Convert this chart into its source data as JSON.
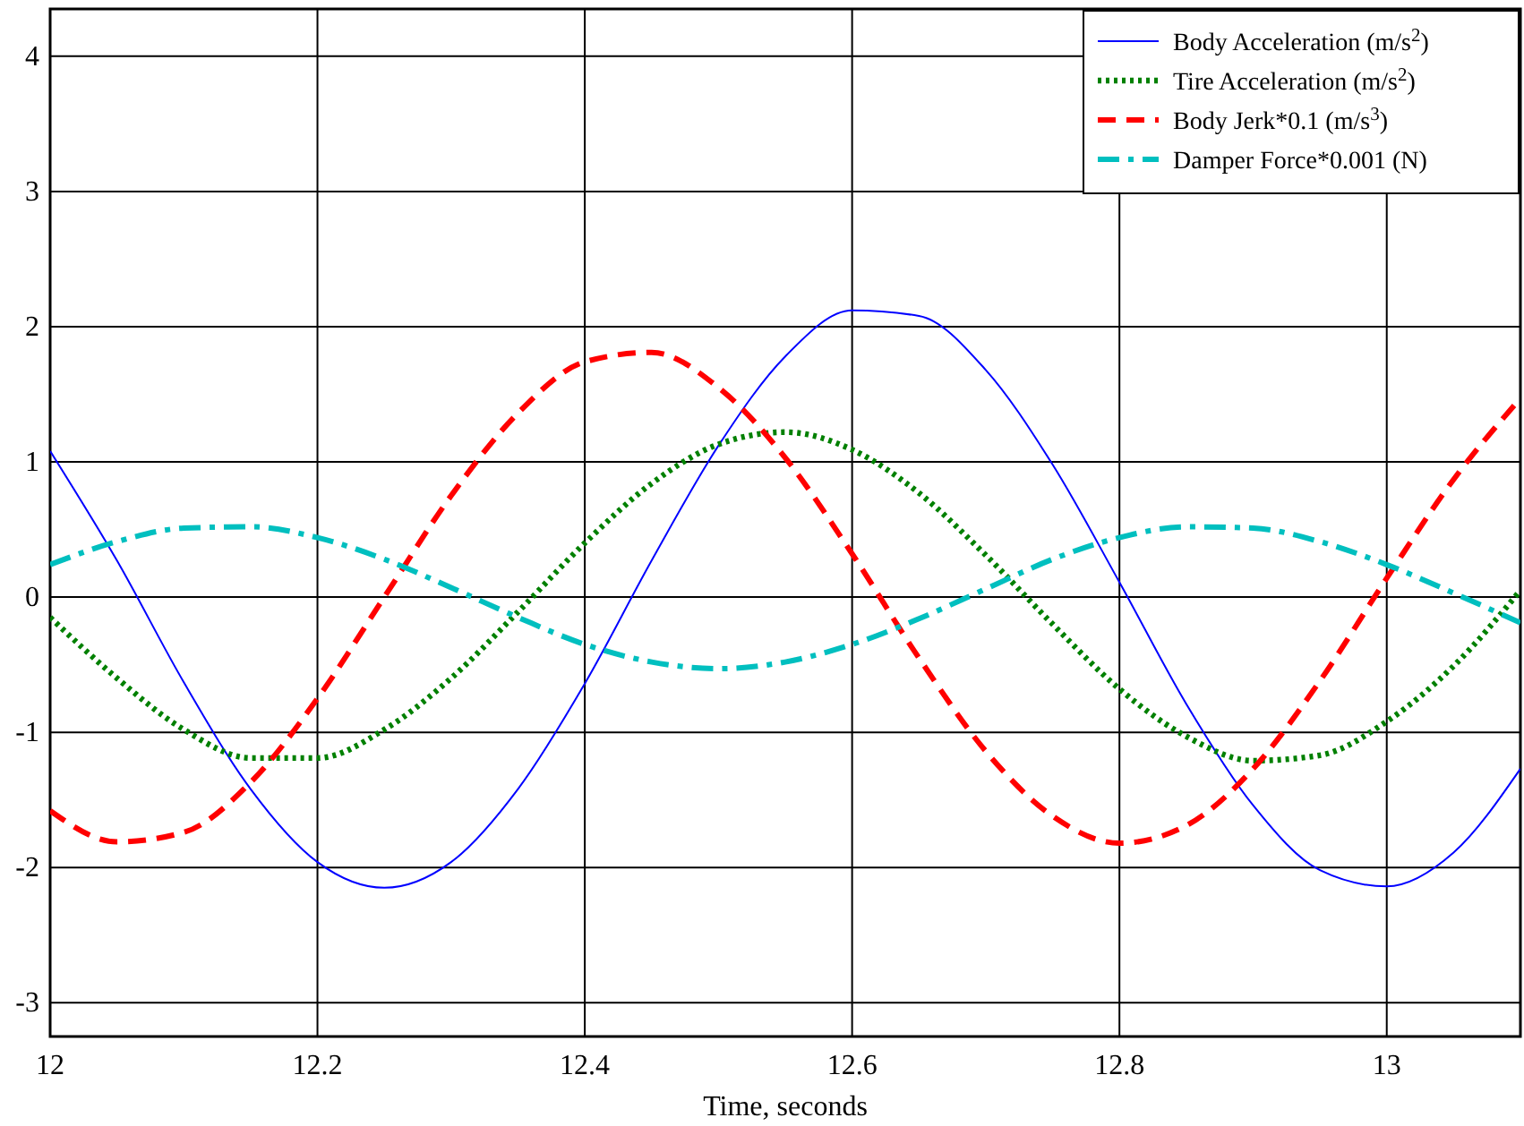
{
  "chart_data": {
    "type": "line",
    "xlabel": "Time, seconds",
    "xlim": [
      12,
      13.1
    ],
    "ylim": [
      -3.25,
      4.35
    ],
    "xticks": [
      12,
      12.2,
      12.4,
      12.6,
      12.8,
      13
    ],
    "yticks": [
      -3,
      -2,
      -1,
      0,
      1,
      2,
      3,
      4
    ],
    "grid": true,
    "legend": "top right",
    "marker": "none",
    "x": [
      12,
      12.05,
      12.1,
      12.15,
      12.2,
      12.25,
      12.3,
      12.35,
      12.4,
      12.45,
      12.5,
      12.55,
      12.6,
      12.65,
      12.7,
      12.75,
      12.8,
      12.85,
      12.9,
      12.95,
      13,
      13.05,
      13.1
    ],
    "series": [
      {
        "name": "Body Acceleration (m/s$^{2}$)",
        "color": "#0000ff",
        "line_style": "solid",
        "values": [
          1.08,
          0.27,
          -0.63,
          -1.42,
          -1.96,
          -2.15,
          -1.96,
          -1.42,
          -0.64,
          0.27,
          1.12,
          1.78,
          2.12,
          2.08,
          1.68,
          0.98,
          0.11,
          -0.79,
          -1.54,
          -2.02,
          -2.14,
          -1.89,
          -1.27
        ]
      },
      {
        "name": "Tire Acceleration (m/s$^{2}$)",
        "color": "#008000",
        "line_style": "dotted",
        "values": [
          -0.15,
          -0.6,
          -0.98,
          -1.19,
          -1.19,
          -0.98,
          -0.6,
          -0.11,
          0.4,
          0.84,
          1.13,
          1.22,
          1.09,
          0.77,
          0.31,
          -0.2,
          -0.68,
          -1.03,
          -1.21,
          -1.17,
          -0.92,
          -0.51,
          0.05
        ]
      },
      {
        "name": "Body Jerk*0.1 (m/s$^{3}$)",
        "color": "#ff0000",
        "line_style": "dashed",
        "values": [
          -1.58,
          -1.81,
          -1.74,
          -1.37,
          -0.75,
          0,
          0.75,
          1.36,
          1.74,
          1.81,
          1.55,
          1.03,
          0.32,
          -0.45,
          -1.14,
          -1.62,
          -1.82,
          -1.69,
          -1.27,
          -0.62,
          0.14,
          0.87,
          1.47
        ]
      },
      {
        "name": "Damper Force*0.001 (N)",
        "color": "#00bfbf",
        "line_style": "dashdot",
        "values": [
          0.24,
          0.41,
          0.51,
          0.52,
          0.44,
          0.28,
          0.07,
          -0.15,
          -0.35,
          -0.48,
          -0.53,
          -0.48,
          -0.35,
          -0.16,
          0.06,
          0.28,
          0.44,
          0.52,
          0.51,
          0.41,
          0.24,
          0.03,
          -0.19
        ]
      }
    ]
  }
}
